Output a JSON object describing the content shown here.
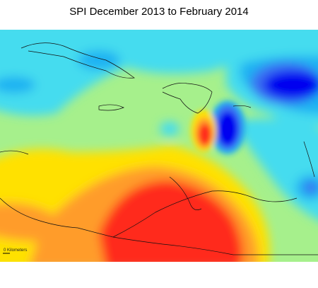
{
  "header": {
    "title": "SPI December 2013 to February 2014"
  },
  "map": {
    "scale_label": "0 Kilometers"
  }
}
